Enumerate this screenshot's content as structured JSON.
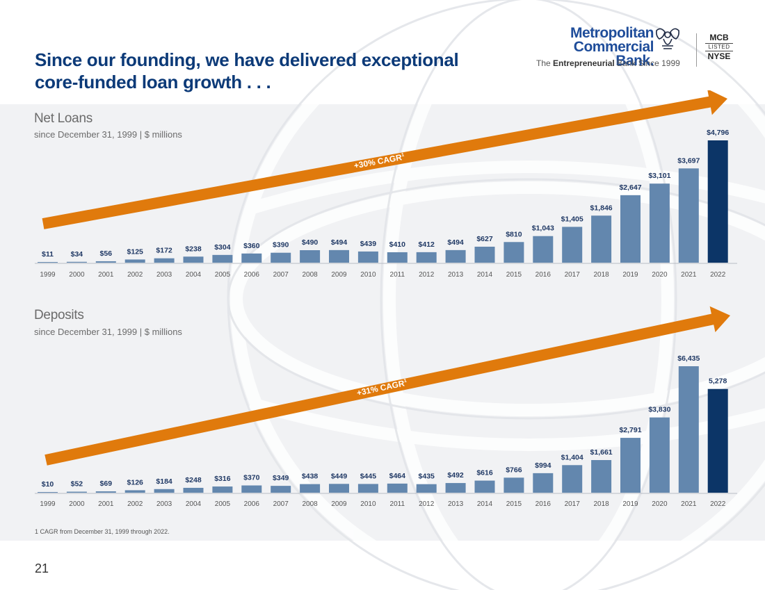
{
  "headline": {
    "line1": "Since our founding, we have delivered exceptional",
    "line2": "core-funded loan growth . . ."
  },
  "logo": {
    "name_line1": "Metropolitan",
    "name_line2": "Commercial Bank.",
    "tag_prefix": "The ",
    "tag_bold": "Entrepreneurial",
    "tag_suffix": " Bank Since 1999",
    "ticker": "MCB",
    "listed": "LISTED",
    "exchange": "NYSE"
  },
  "colors": {
    "bar": "#6387ae",
    "bar_highlight": "#0c3567",
    "arrow": "#e07a0c",
    "label": "#1f3864",
    "title": "#0c3a78"
  },
  "chart_data": [
    {
      "type": "bar",
      "title": "Net Loans",
      "subtitle": "since December 31, 1999 | $ millions",
      "arrow_label": "+30% CAGR",
      "arrow_sup": "1",
      "categories": [
        "1999",
        "2000",
        "2001",
        "2002",
        "2003",
        "2004",
        "2005",
        "2006",
        "2007",
        "2008",
        "2009",
        "2010",
        "2011",
        "2012",
        "2013",
        "2014",
        "2015",
        "2016",
        "2017",
        "2018",
        "2019",
        "2020",
        "2021",
        "2022"
      ],
      "values": [
        11,
        34,
        56,
        125,
        172,
        238,
        304,
        360,
        390,
        490,
        494,
        439,
        410,
        412,
        494,
        627,
        810,
        1043,
        1405,
        1846,
        2647,
        3101,
        3697,
        4796
      ],
      "labels": [
        "$11",
        "$34",
        "$56",
        "$125",
        "$172",
        "$238",
        "$304",
        "$360",
        "$390",
        "$490",
        "$494",
        "$439",
        "$410",
        "$412",
        "$494",
        "$627",
        "$810",
        "$1,043",
        "$1,405",
        "$1,846",
        "$2,647",
        "$3,101",
        "$3,697",
        "$4,796"
      ],
      "highlight_index": 23,
      "ylim": [
        0,
        4796
      ]
    },
    {
      "type": "bar",
      "title": "Deposits",
      "subtitle": "since December 31, 1999 |  $ millions",
      "arrow_label": "+31% CAGR",
      "arrow_sup": "1",
      "categories": [
        "1999",
        "2000",
        "2001",
        "2002",
        "2003",
        "2004",
        "2005",
        "2006",
        "2007",
        "2008",
        "2009",
        "2010",
        "2011",
        "2012",
        "2013",
        "2014",
        "2015",
        "2016",
        "2017",
        "2018",
        "2019",
        "2020",
        "2021",
        "2022"
      ],
      "values": [
        10,
        52,
        69,
        126,
        184,
        248,
        316,
        370,
        349,
        438,
        449,
        445,
        464,
        435,
        492,
        616,
        766,
        994,
        1404,
        1661,
        2791,
        3830,
        6435,
        5278
      ],
      "labels": [
        "$10",
        "$52",
        "$69",
        "$126",
        "$184",
        "$248",
        "$316",
        "$370",
        "$349",
        "$438",
        "$449",
        "$445",
        "$464",
        "$435",
        "$492",
        "$616",
        "$766",
        "$994",
        "$1,404",
        "$1,661",
        "$2,791",
        "$3,830",
        "$6,435",
        "5,278"
      ],
      "highlight_index": 23,
      "ylim": [
        0,
        6435
      ]
    }
  ],
  "footnote": "1 CAGR from December 31, 1999 through 2022.",
  "page_number": "21"
}
